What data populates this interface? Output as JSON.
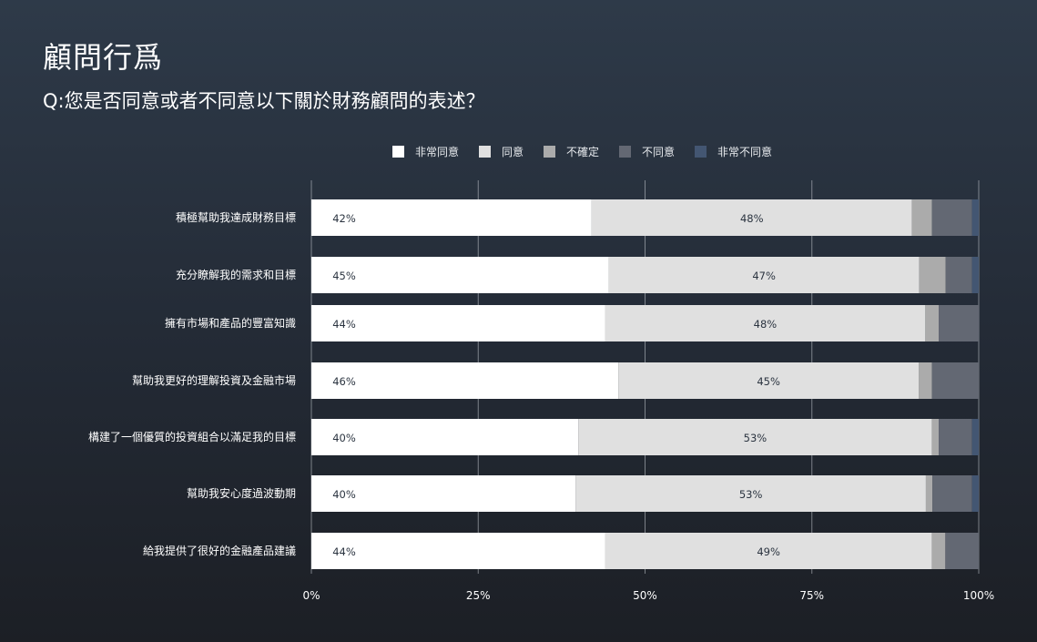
{
  "header": {
    "title": "顧問行爲",
    "subtitle": "Q:您是否同意或者不同意以下關於財務顧問的表述？"
  },
  "chart_data": {
    "type": "bar",
    "orientation": "horizontal",
    "stacked": "percent",
    "title": "顧問行爲",
    "subtitle": "Q:您是否同意或者不同意以下關於財務顧問的表述？",
    "categories": [
      "積極幫助我達成財務目標",
      "充分瞭解我的需求和目標",
      "擁有市場和產品的豐富知識",
      "幫助我更好的理解投資及金融市場",
      "構建了一個優質的投資組合以滿足我的目標",
      "幫助我安心度過波動期",
      "給我提供了很好的金融產品建議"
    ],
    "series": [
      {
        "name": "非常同意",
        "color": "#ffffff",
        "values": [
          42,
          45,
          44,
          46,
          40,
          40,
          44
        ]
      },
      {
        "name": "同意",
        "color": "#e0e0e0",
        "values": [
          48,
          47,
          48,
          45,
          53,
          53,
          49
        ]
      },
      {
        "name": "不確定",
        "color": "#ababab",
        "values": [
          3,
          4,
          2,
          2,
          1,
          1,
          2
        ]
      },
      {
        "name": "不同意",
        "color": "#636873",
        "values": [
          6,
          4,
          6,
          7,
          5,
          6,
          5
        ]
      },
      {
        "name": "非常不同意",
        "color": "#435672",
        "values": [
          1,
          1,
          0,
          0,
          1,
          1,
          0
        ]
      }
    ],
    "data_labels": [
      [
        "42%",
        "48%"
      ],
      [
        "45%",
        "47%"
      ],
      [
        "44%",
        "48%"
      ],
      [
        "46%",
        "45%"
      ],
      [
        "40%",
        "53%"
      ],
      [
        "40%",
        "53%"
      ],
      [
        "44%",
        "49%"
      ]
    ],
    "x_ticks": [
      "0%",
      "25%",
      "50%",
      "75%",
      "100%"
    ],
    "xlim": [
      0,
      100
    ],
    "legend": "top-center",
    "grid": true
  }
}
